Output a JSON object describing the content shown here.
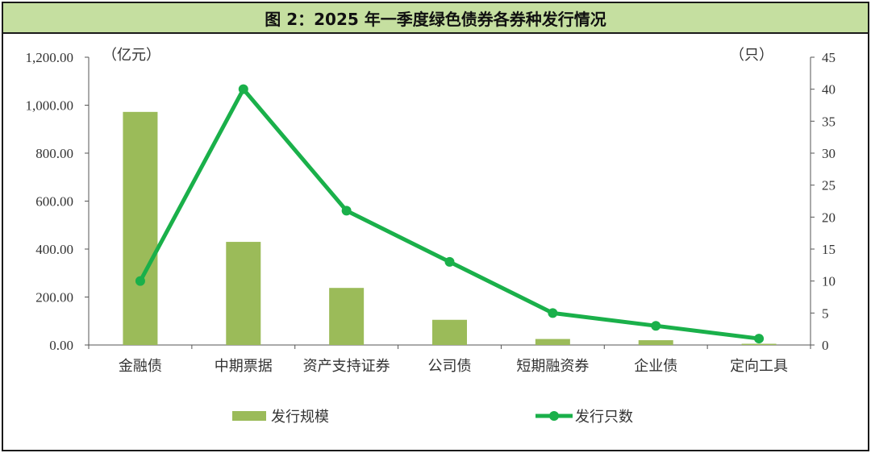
{
  "title": "图 2：2025 年一季度绿色债券各券种发行情况",
  "chart_data": {
    "type": "bar+line",
    "title": "图 2：2025 年一季度绿色债券各券种发行情况",
    "categories": [
      "金融债",
      "中期票据",
      "资产支持证券",
      "公司债",
      "短期融资券",
      "企业债",
      "定向工具"
    ],
    "series": [
      {
        "name": "发行规模",
        "type": "bar",
        "axis": "left",
        "color": "#9bbb59",
        "values": [
          972,
          430,
          238,
          105,
          25,
          20,
          5
        ]
      },
      {
        "name": "发行只数",
        "type": "line",
        "axis": "right",
        "color": "#1ab04a",
        "values": [
          10,
          40,
          21,
          13,
          5,
          3,
          1
        ]
      }
    ],
    "left_axis": {
      "unit": "（亿元）",
      "ylim": [
        0,
        1200
      ],
      "ticks": [
        "0.00",
        "200.00",
        "400.00",
        "600.00",
        "800.00",
        "1,000.00",
        "1,200.00"
      ]
    },
    "right_axis": {
      "unit": "（只）",
      "ylim": [
        0,
        45
      ],
      "ticks": [
        "0",
        "5",
        "10",
        "15",
        "20",
        "25",
        "30",
        "35",
        "40",
        "45"
      ]
    },
    "legend_position": "bottom",
    "grid": false
  }
}
